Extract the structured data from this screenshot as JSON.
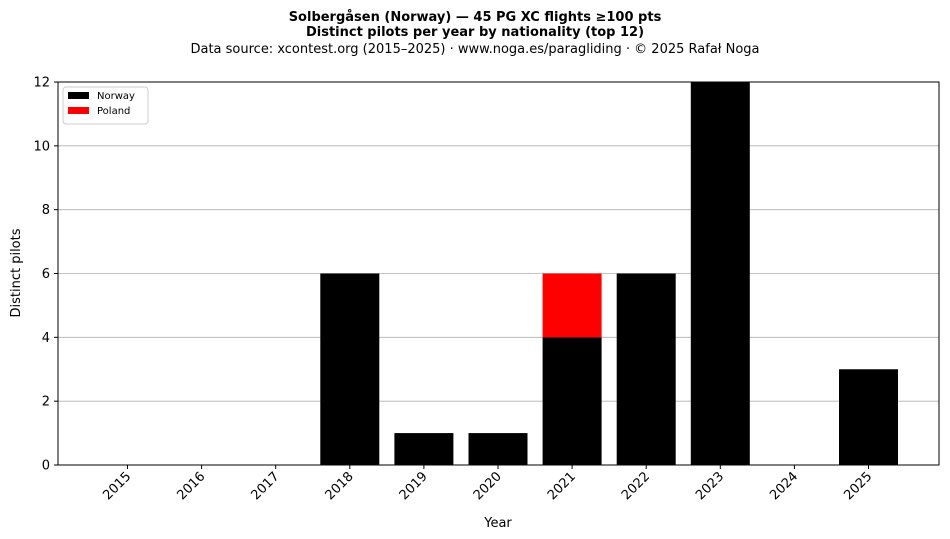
{
  "chart_data": {
    "type": "bar",
    "stacked": true,
    "title": "Solbergåsen (Norway)  —  45 PG XC flights ≥100 pts",
    "subtitle": "Distinct pilots per year by nationality (top 12)",
    "source": "Data source: xcontest.org (2015–2025)  ·  www.noga.es/paragliding  ·  © 2025 Rafał Noga",
    "xlabel": "Year",
    "ylabel": "Distinct pilots",
    "ylim": [
      0,
      12
    ],
    "yticks": [
      0,
      2,
      4,
      6,
      8,
      10,
      12
    ],
    "grid": "y",
    "legend_position": "top-left",
    "categories": [
      "2015",
      "2016",
      "2017",
      "2018",
      "2019",
      "2020",
      "2021",
      "2022",
      "2023",
      "2024",
      "2025"
    ],
    "series": [
      {
        "name": "Norway",
        "color": "#000000",
        "values": [
          0,
          0,
          0,
          6,
          1,
          1,
          4,
          6,
          12,
          0,
          3
        ]
      },
      {
        "name": "Poland",
        "color": "#ff0000",
        "values": [
          0,
          0,
          0,
          0,
          0,
          0,
          2,
          0,
          0,
          0,
          0
        ]
      }
    ]
  }
}
